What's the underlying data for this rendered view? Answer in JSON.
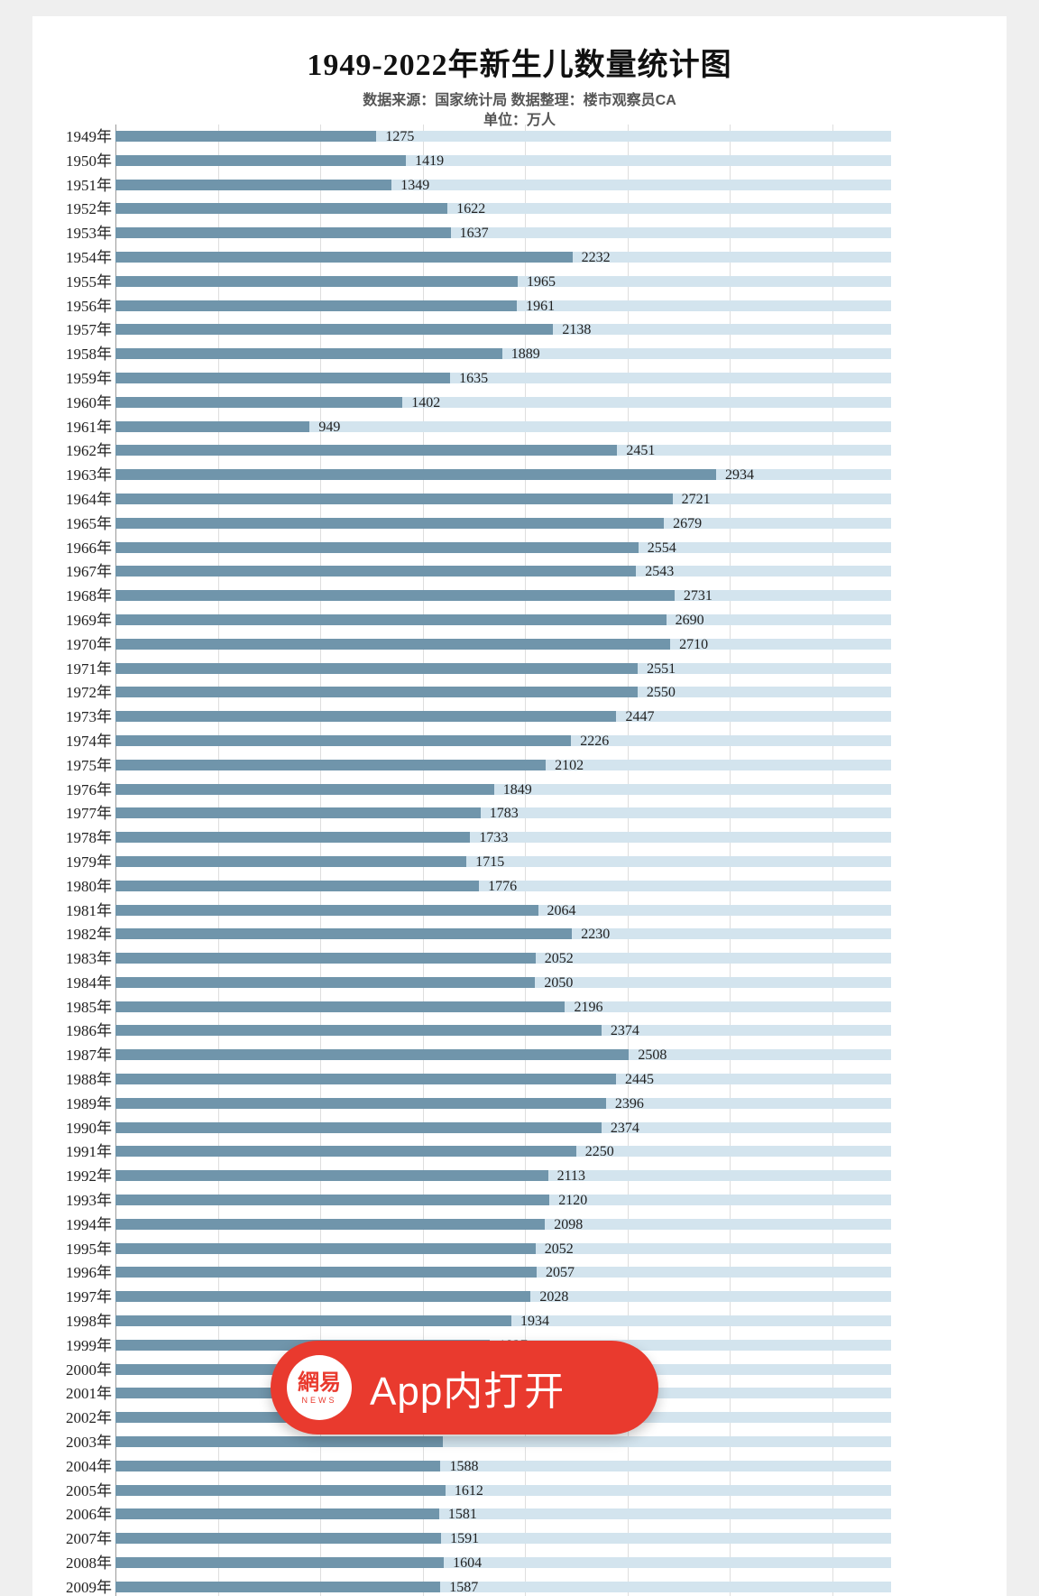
{
  "overlay": {
    "brand": "網易",
    "brand_sub": "NEWS",
    "label": "App内打开",
    "button_color": "#e93a2e"
  },
  "chart_data": {
    "type": "bar",
    "orientation": "horizontal",
    "title": "1949-2022年新生儿数量统计图",
    "subtitle": "数据来源：国家统计局  数据整理：楼市观察员CA",
    "unit_label": "单位：万人",
    "xlim": [
      0,
      3500
    ],
    "gridline_step": 500,
    "grid": true,
    "bar_color": "#7095ab",
    "track_color": "#d3e4ee",
    "categories": [
      "1949年",
      "1950年",
      "1951年",
      "1952年",
      "1953年",
      "1954年",
      "1955年",
      "1956年",
      "1957年",
      "1958年",
      "1959年",
      "1960年",
      "1961年",
      "1962年",
      "1963年",
      "1964年",
      "1965年",
      "1966年",
      "1967年",
      "1968年",
      "1969年",
      "1970年",
      "1971年",
      "1972年",
      "1973年",
      "1974年",
      "1975年",
      "1976年",
      "1977年",
      "1978年",
      "1979年",
      "1980年",
      "1981年",
      "1982年",
      "1983年",
      "1984年",
      "1985年",
      "1986年",
      "1987年",
      "1988年",
      "1989年",
      "1990年",
      "1991年",
      "1992年",
      "1993年",
      "1994年",
      "1995年",
      "1996年",
      "1997年",
      "1998年",
      "1999年",
      "2000年",
      "2001年",
      "2002年",
      "2003年",
      "2004年",
      "2005年",
      "2006年",
      "2007年",
      "2008年",
      "2009年"
    ],
    "values": [
      1275,
      1419,
      1349,
      1622,
      1637,
      2232,
      1965,
      1961,
      2138,
      1889,
      1635,
      1402,
      949,
      2451,
      2934,
      2721,
      2679,
      2554,
      2543,
      2731,
      2690,
      2710,
      2551,
      2550,
      2447,
      2226,
      2102,
      1849,
      1783,
      1733,
      1715,
      1776,
      2064,
      2230,
      2052,
      2050,
      2196,
      2374,
      2508,
      2445,
      2396,
      2374,
      2250,
      2113,
      2120,
      2098,
      2052,
      2057,
      2028,
      1934,
      1827,
      1771,
      1702,
      1647,
      1599,
      1588,
      1612,
      1581,
      1591,
      1604,
      1587
    ],
    "value_labels": [
      "1275",
      "1419",
      "1349",
      "1622",
      "1637",
      "2232",
      "1965",
      "1961",
      "2138",
      "1889",
      "1635",
      "1402",
      "949",
      "2451",
      "2934",
      "2721",
      "2679",
      "2554",
      "2543",
      "2731",
      "2690",
      "2710",
      "2551",
      "2550",
      "2447",
      "2226",
      "2102",
      "1849",
      "1783",
      "1733",
      "1715",
      "1776",
      "2064",
      "2230",
      "2052",
      "2050",
      "2196",
      "2374",
      "2508",
      "2445",
      "2396",
      "2374",
      "2250",
      "2113",
      "2120",
      "2098",
      "2052",
      "2057",
      "2028",
      "1934",
      "1827",
      "",
      "",
      "",
      "",
      "1588",
      "1612",
      "1581",
      "1591",
      "1604",
      "1587"
    ]
  }
}
